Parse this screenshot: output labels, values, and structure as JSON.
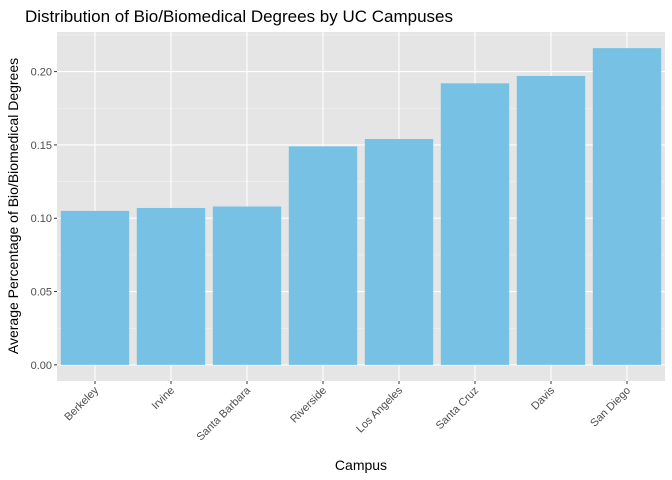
{
  "chart_data": {
    "type": "bar",
    "title": "Distribution of Bio/Biomedical Degrees by UC Campuses",
    "xlabel": "Campus",
    "ylabel": "Average Percentage of Bio/Biomedical Degrees",
    "categories": [
      "Berkeley",
      "Irvine",
      "Santa Barbara",
      "Riverside",
      "Los Angeles",
      "Santa Cruz",
      "Davis",
      "San Diego"
    ],
    "values": [
      0.105,
      0.107,
      0.108,
      0.149,
      0.154,
      0.192,
      0.197,
      0.216
    ],
    "ylim": [
      -0.011,
      0.227
    ],
    "yticks": [
      0.0,
      0.05,
      0.1,
      0.15,
      0.2
    ],
    "ytick_labels": [
      "0.00",
      "0.05",
      "0.10",
      "0.15",
      "0.20"
    ],
    "grid": true,
    "legend": "none",
    "colors": {
      "bar": "#77C1E5",
      "panel": "#E5E5E5",
      "grid_major": "#FFFFFF",
      "grid_minor": "#F2F2F2"
    }
  }
}
